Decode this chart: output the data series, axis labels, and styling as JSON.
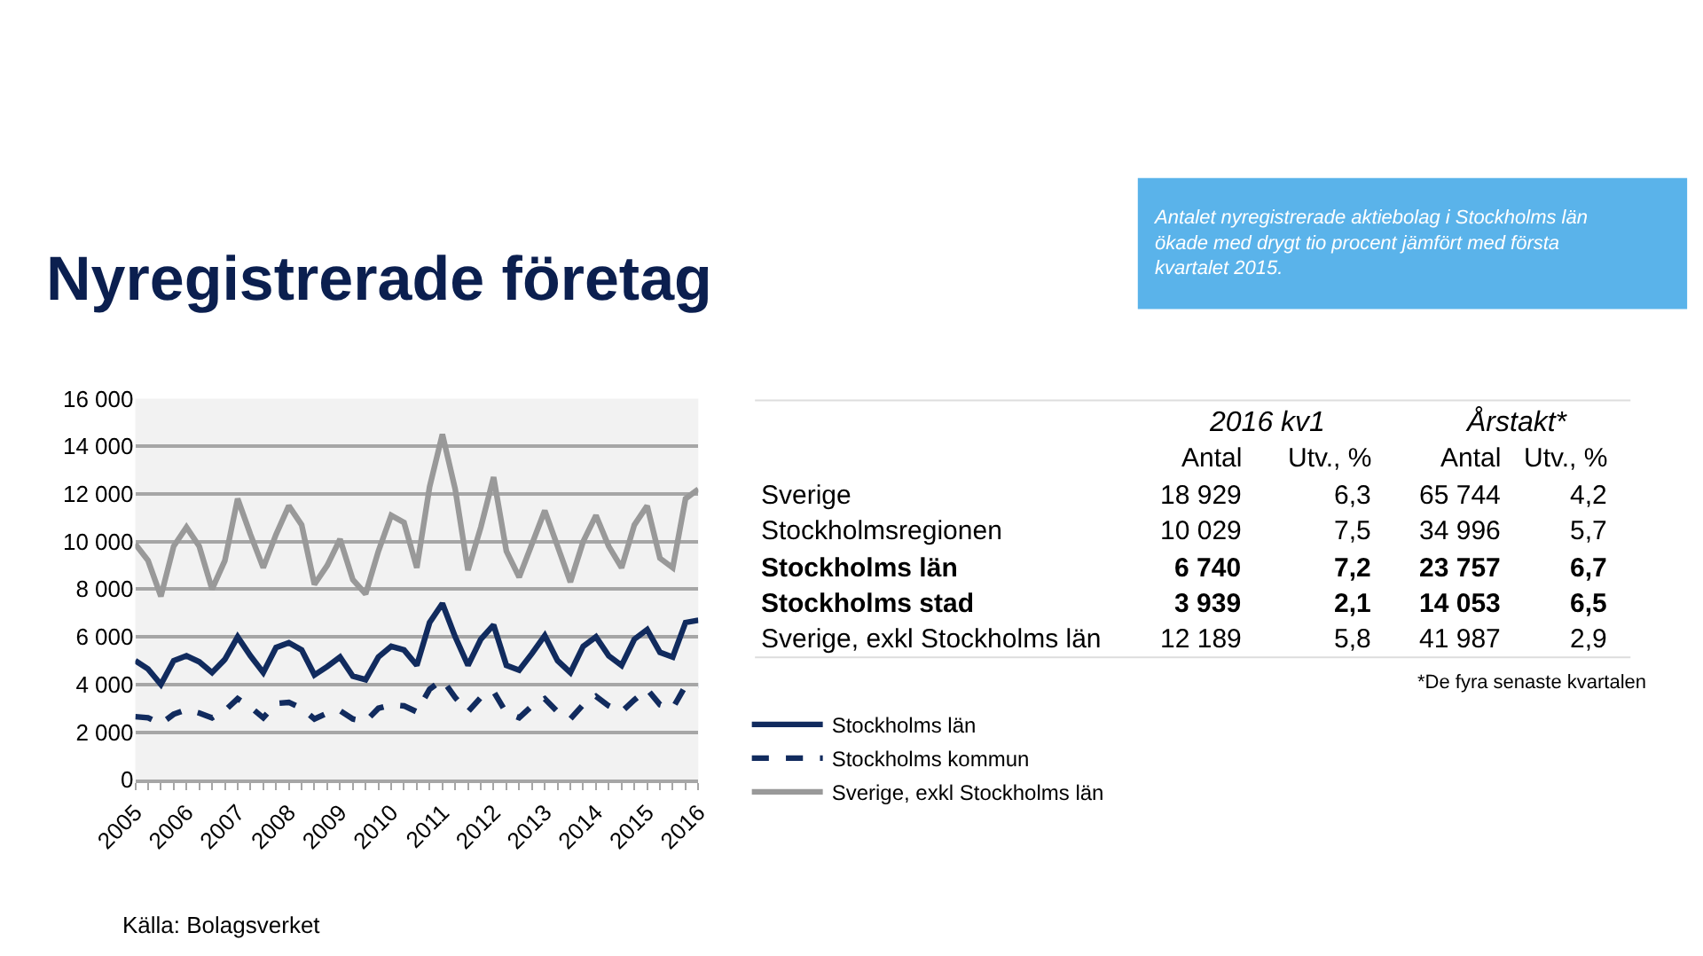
{
  "chart_data": [
    {
      "type": "line",
      "title": "Nyregistrerade företag",
      "x": [
        2005,
        2005.25,
        2005.5,
        2005.75,
        2006,
        2006.25,
        2006.5,
        2006.75,
        2007,
        2007.25,
        2007.5,
        2007.75,
        2008,
        2008.25,
        2008.5,
        2008.75,
        2009,
        2009.25,
        2009.5,
        2009.75,
        2010,
        2010.25,
        2010.5,
        2010.75,
        2011,
        2011.25,
        2011.5,
        2011.75,
        2012,
        2012.25,
        2012.5,
        2012.75,
        2013,
        2013.25,
        2013.5,
        2013.75,
        2014,
        2014.25,
        2014.5,
        2014.75,
        2015,
        2015.25,
        2015.5,
        2015.75,
        2016
      ],
      "series": [
        {
          "name": "Stockholms län",
          "color": "#112b5e",
          "line_style": "solid",
          "values": [
            5000,
            4650,
            4000,
            5000,
            5200,
            4950,
            4500,
            5050,
            6000,
            5200,
            4500,
            5550,
            5750,
            5450,
            4400,
            4750,
            5150,
            4350,
            4200,
            5150,
            5600,
            5450,
            4800,
            6600,
            7400,
            6000,
            4800,
            5900,
            6500,
            4800,
            4600,
            5300,
            6050,
            5000,
            4500,
            5600,
            6000,
            5200,
            4800,
            5900,
            6300,
            5350,
            5150,
            6600,
            6700
          ]
        },
        {
          "name": "Stockholms kommun",
          "color": "#112b5e",
          "line_style": "dashed",
          "values": [
            2650,
            2600,
            2350,
            2750,
            2950,
            2800,
            2600,
            2900,
            3400,
            3050,
            2600,
            3200,
            3250,
            3000,
            2550,
            2800,
            2900,
            2550,
            2450,
            3000,
            3150,
            3100,
            2850,
            3800,
            4200,
            3450,
            2850,
            3450,
            3700,
            2800,
            2600,
            3100,
            3400,
            2850,
            2550,
            3150,
            3500,
            3100,
            2850,
            3350,
            3800,
            3150,
            3000,
            3950,
            3950
          ]
        },
        {
          "name": "Sverige, exkl Stockholms län",
          "color": "#999999",
          "line_style": "solid",
          "values": [
            9900,
            9200,
            7700,
            9800,
            10600,
            9800,
            8000,
            9200,
            11800,
            10300,
            8900,
            10300,
            11500,
            10700,
            8200,
            9000,
            10100,
            8400,
            7800,
            9600,
            11100,
            10800,
            8900,
            12300,
            14500,
            12200,
            8800,
            10600,
            12700,
            9600,
            8500,
            9900,
            11300,
            9800,
            8300,
            10000,
            11100,
            9800,
            8900,
            10700,
            11500,
            9300,
            8900,
            11800,
            12200
          ]
        }
      ],
      "xlim": [
        2005,
        2016
      ],
      "xticks": [
        2005,
        {
          "value": 2005.25,
          "label": null
        },
        {
          "value": 2005.5,
          "label": null
        },
        {
          "value": 2005.75,
          "label": null
        },
        2006,
        {
          "value": 2006.25,
          "label": null
        },
        {
          "value": 2006.5,
          "label": null
        },
        {
          "value": 2006.75,
          "label": null
        },
        2007,
        {
          "value": 2007.25,
          "label": null
        },
        {
          "value": 2007.5,
          "label": null
        },
        {
          "value": 2007.75,
          "label": null
        },
        2008,
        {
          "value": 2008.25,
          "label": null
        },
        {
          "value": 2008.5,
          "label": null
        },
        {
          "value": 2008.75,
          "label": null
        },
        2009,
        {
          "value": 2009.25,
          "label": null
        },
        {
          "value": 2009.5,
          "label": null
        },
        {
          "value": 2009.75,
          "label": null
        },
        2010,
        {
          "value": 2010.25,
          "label": null
        },
        {
          "value": 2010.5,
          "label": null
        },
        {
          "value": 2010.75,
          "label": null
        },
        2011,
        {
          "value": 2011.25,
          "label": null
        },
        {
          "value": 2011.5,
          "label": null
        },
        {
          "value": 2011.75,
          "label": null
        },
        2012,
        {
          "value": 2012.25,
          "label": null
        },
        {
          "value": 2012.5,
          "label": null
        },
        {
          "value": 2012.75,
          "label": null
        },
        2013,
        {
          "value": 2013.25,
          "label": null
        },
        {
          "value": 2013.5,
          "label": null
        },
        {
          "value": 2013.75,
          "label": null
        },
        2014,
        {
          "value": 2014.25,
          "label": null
        },
        {
          "value": 2014.5,
          "label": null
        },
        {
          "value": 2014.75,
          "label": null
        },
        2015,
        {
          "value": 2015.25,
          "label": null
        },
        {
          "value": 2015.5,
          "label": null
        },
        {
          "value": 2015.75,
          "label": null
        },
        2016
      ],
      "ylim": [
        0,
        16000
      ],
      "yticks": [
        0,
        {
          "value": 2000,
          "label": "2 000"
        },
        {
          "value": 4000,
          "label": "4 000"
        },
        {
          "value": 6000,
          "label": "6 000"
        },
        {
          "value": 8000,
          "label": "8 000"
        },
        {
          "value": 10000,
          "label": "10 000"
        },
        {
          "value": 12000,
          "label": "12 000"
        },
        {
          "value": 14000,
          "label": "14 000"
        },
        {
          "value": 16000,
          "label": "16 000"
        }
      ],
      "grid": "y",
      "legend": "bottom right",
      "marker": "none",
      "annotations": [
        "Antalet nyregistrerade aktiebolag i Stockholms län ökade med drygt tio procent jämfört med första kvartalet 2015.",
        "Källa: Bolagsverket"
      ]
    },
    {
      "type": "other",
      "categories": [
        "Sverige",
        "Stockholmsregionen",
        "Stockholms län",
        "Stockholms stad",
        "Sverige, exkl Stockholms län"
      ],
      "series": [
        {
          "name": "Antal",
          "values": [
            18929,
            10029,
            6740,
            3939,
            12189
          ],
          "value_labels": [
            "18 929",
            "10 029",
            "6 740",
            "3 939",
            "12 189"
          ]
        },
        {
          "name": "Utv., %",
          "values": [
            6.3,
            7.5,
            7.2,
            2.1,
            5.8
          ],
          "value_labels": [
            "6,3",
            "7,5",
            "7,2",
            "2,1",
            "5,8"
          ]
        },
        {
          "name": "Antal",
          "values": [
            65744,
            34996,
            23757,
            14053,
            41987
          ],
          "value_labels": [
            "65 744",
            "34 996",
            "23 757",
            "14 053",
            "41 987"
          ]
        },
        {
          "name": "Utv., %",
          "values": [
            4.2,
            5.7,
            6.7,
            6.5,
            2.9
          ],
          "value_labels": [
            "4,2",
            "5,7",
            "6,7",
            "6,5",
            "2,9"
          ]
        }
      ],
      "annotations": [
        "2016 kv1",
        "Årstakt*",
        "*De fyra senaste kvartalen"
      ]
    }
  ]
}
